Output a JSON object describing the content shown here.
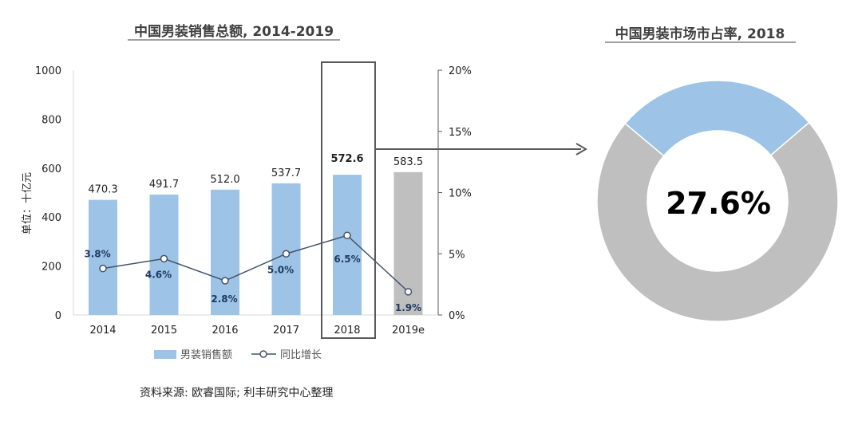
{
  "chart_data": [
    {
      "type": "bar",
      "title": "中国男装销售总额, 2014-2019",
      "ylabel": "单位：十亿元",
      "categories": [
        "2014",
        "2015",
        "2016",
        "2017",
        "2018",
        "2019e"
      ],
      "ylim": [
        0,
        1000
      ],
      "y_ticks": [
        "0",
        "200",
        "400",
        "600",
        "800",
        "1000"
      ],
      "y2lim": [
        0,
        20
      ],
      "y2_ticks": [
        "0%",
        "5%",
        "10%",
        "15%",
        "20%"
      ],
      "series": [
        {
          "name": "男装销售额",
          "type": "bar",
          "values": [
            470.3,
            491.7,
            512.0,
            537.7,
            572.6,
            583.5
          ],
          "labels": [
            "470.3",
            "491.7",
            "512.0",
            "537.7",
            "572.6",
            "583.5"
          ],
          "colors": [
            "#9dc3e6",
            "#9dc3e6",
            "#9dc3e6",
            "#9dc3e6",
            "#9dc3e6",
            "#bfbfbf"
          ]
        },
        {
          "name": "同比增长",
          "type": "line",
          "axis": "right",
          "values": [
            3.8,
            4.6,
            2.8,
            5.0,
            6.5,
            1.9
          ],
          "labels": [
            "3.8%",
            "4.6%",
            "2.8%",
            "5.0%",
            "6.5%",
            "1.9%"
          ],
          "color": "#44546a"
        }
      ],
      "highlight_category": "2018",
      "legend_position": "bottom",
      "grid": false
    },
    {
      "type": "pie",
      "style": "donut",
      "title": "中国男装市场市占率, 2018",
      "slices": [
        {
          "label": "",
          "value": 27.6,
          "color": "#9dc3e6"
        },
        {
          "label": "",
          "value": 72.4,
          "color": "#bfbfbf"
        }
      ],
      "center_label": "27.6%"
    }
  ],
  "source_text": "资料来源: 欧睿国际; 利丰研究中心整理"
}
